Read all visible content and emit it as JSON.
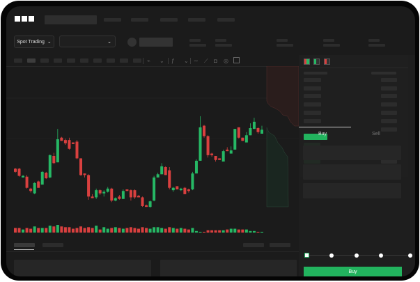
{
  "brand": {
    "logo": "OKX"
  },
  "header": {
    "nav_placeholders": 5
  },
  "toolbar": {
    "market_selector": "Spot Trading",
    "pair_selector": "",
    "chevron": "chevron-down-icon"
  },
  "chart_toolbar": {
    "icons": [
      "candle-type-icon",
      "indicator-icon",
      "draw-line-icon",
      "ruler-icon",
      "camera-icon",
      "settings-icon",
      "fullscreen-icon"
    ]
  },
  "order_book": {
    "view_icons": [
      "book-both-icon",
      "book-bids-icon",
      "book-asks-icon"
    ]
  },
  "trade_panel": {
    "tabs": [
      "Buy",
      "Sell"
    ],
    "active_tab": "Buy",
    "leverage_slider_percent": 0,
    "submit_color": "#22b35e"
  },
  "colors": {
    "up": "#26b865",
    "down": "#d9403f",
    "background": "#1b1b1b"
  },
  "chart_data": {
    "type": "candlestick",
    "candles": [
      [
        68,
        69,
        63,
        64
      ],
      [
        68,
        69,
        58,
        59
      ],
      [
        57,
        60,
        57,
        59
      ],
      [
        58,
        60,
        43,
        44
      ],
      [
        43,
        44,
        38,
        40
      ],
      [
        37,
        51,
        36,
        50
      ],
      [
        52,
        53,
        44,
        44
      ],
      [
        48,
        65,
        48,
        64
      ],
      [
        63,
        64,
        55,
        56
      ],
      [
        57,
        86,
        56,
        85
      ],
      [
        84,
        88,
        74,
        75
      ],
      [
        76,
        118,
        76,
        105
      ],
      [
        107,
        108,
        103,
        103
      ],
      [
        104,
        106,
        98,
        100
      ],
      [
        104,
        107,
        92,
        93
      ],
      [
        101,
        101,
        99,
        99
      ],
      [
        102,
        104,
        80,
        81
      ],
      [
        81,
        81,
        59,
        60
      ],
      [
        62,
        62,
        57,
        60
      ],
      [
        60,
        61,
        29,
        33
      ],
      [
        33,
        36,
        31,
        31
      ],
      [
        32,
        43,
        30,
        41
      ],
      [
        41,
        42,
        35,
        37
      ],
      [
        37,
        41,
        33,
        39
      ],
      [
        39,
        45,
        38,
        43
      ],
      [
        43,
        44,
        26,
        28
      ],
      [
        28,
        32,
        27,
        31
      ],
      [
        33,
        35,
        29,
        30
      ],
      [
        30,
        42,
        30,
        40
      ],
      [
        42,
        42,
        40,
        40
      ],
      [
        41,
        42,
        28,
        32
      ],
      [
        41,
        42,
        30,
        32
      ],
      [
        34,
        35,
        32,
        32
      ],
      [
        32,
        33,
        20,
        21
      ],
      [
        22,
        23,
        20,
        20
      ],
      [
        20,
        28,
        19,
        27
      ],
      [
        28,
        59,
        27,
        57
      ],
      [
        57,
        63,
        57,
        61
      ],
      [
        61,
        75,
        61,
        71
      ],
      [
        70,
        71,
        60,
        60
      ],
      [
        66,
        70,
        42,
        44
      ],
      [
        41,
        45,
        39,
        44
      ],
      [
        46,
        46,
        42,
        42
      ],
      [
        41,
        44,
        40,
        43
      ],
      [
        44,
        45,
        36,
        36
      ],
      [
        42,
        43,
        38,
        40
      ],
      [
        42,
        64,
        41,
        62
      ],
      [
        62,
        80,
        62,
        78
      ],
      [
        78,
        134,
        78,
        120
      ],
      [
        122,
        123,
        107,
        109
      ],
      [
        109,
        110,
        82,
        85
      ],
      [
        87,
        88,
        83,
        85
      ],
      [
        84,
        84,
        77,
        79
      ],
      [
        81,
        81,
        79,
        79
      ],
      [
        77,
        92,
        77,
        90
      ],
      [
        92,
        95,
        90,
        90
      ],
      [
        87,
        96,
        87,
        91
      ],
      [
        92,
        118,
        92,
        118
      ],
      [
        120,
        120,
        106,
        107
      ],
      [
        107,
        107,
        103,
        103
      ],
      [
        101,
        114,
        101,
        110
      ],
      [
        110,
        125,
        110,
        119
      ],
      [
        118,
        132,
        118,
        127
      ],
      [
        119,
        120,
        112,
        114
      ],
      [
        112,
        122,
        112,
        117
      ]
    ],
    "volume": [
      6,
      6,
      4,
      6,
      5,
      8,
      6,
      6,
      6,
      9,
      8,
      10,
      8,
      7,
      7,
      5,
      6,
      8,
      6,
      7,
      6,
      9,
      4,
      7,
      5,
      6,
      7,
      6,
      5,
      6,
      7,
      6,
      5,
      7,
      6,
      5,
      7,
      7,
      6,
      5,
      7,
      6,
      5,
      6,
      5,
      4,
      6,
      2,
      1,
      1,
      3,
      3,
      3,
      3,
      3,
      4,
      5,
      5,
      4,
      4,
      4,
      2,
      2,
      1,
      1
    ],
    "ylim": [
      0,
      140
    ],
    "grid": true
  }
}
